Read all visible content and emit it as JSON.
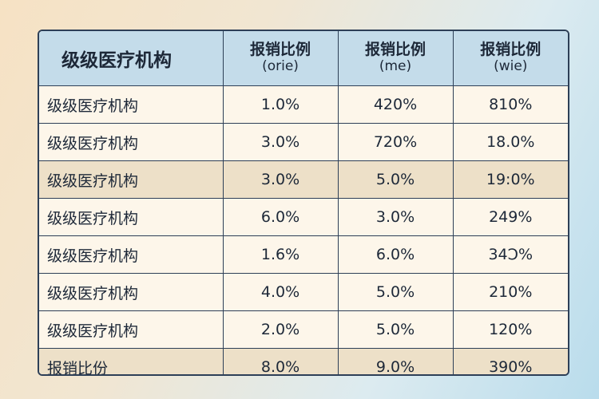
{
  "header": {
    "title": "级级医疗机构",
    "columns": [
      {
        "label": "报销比例",
        "sub": "(orie)"
      },
      {
        "label": "报销比例",
        "sub": "(me)"
      },
      {
        "label": "报销比例",
        "sub": "(wie)"
      }
    ]
  },
  "rows": [
    {
      "label": "级级医疗机构",
      "values": [
        "1.0%",
        "420%",
        "810%"
      ]
    },
    {
      "label": "级级医疗机构",
      "values": [
        "3.0%",
        "720%",
        "18.0%"
      ]
    },
    {
      "label": "级级医疗机构",
      "values": [
        "3.0%",
        "5.0%",
        "19:0%"
      ]
    },
    {
      "label": "级级医疗机构",
      "values": [
        "6.0%",
        "3.0%",
        "249%"
      ]
    },
    {
      "label": "级级医疗机构",
      "values": [
        "1.6%",
        "6.0%",
        "34Ͻ%"
      ]
    },
    {
      "label": "级级医疗机构",
      "values": [
        "4.0%",
        "5.0%",
        "210%"
      ]
    },
    {
      "label": "级级医疗机构",
      "values": [
        "2.0%",
        "5.0%",
        "120%"
      ]
    },
    {
      "label": "报销比份",
      "values": [
        "8.0%",
        "9.0%",
        "390%"
      ]
    }
  ],
  "colors": {
    "header_bg": "#c4dcea",
    "row_light": "#fdf6ea",
    "row_shade": "#ede0c8",
    "border": "#2d3f57"
  }
}
